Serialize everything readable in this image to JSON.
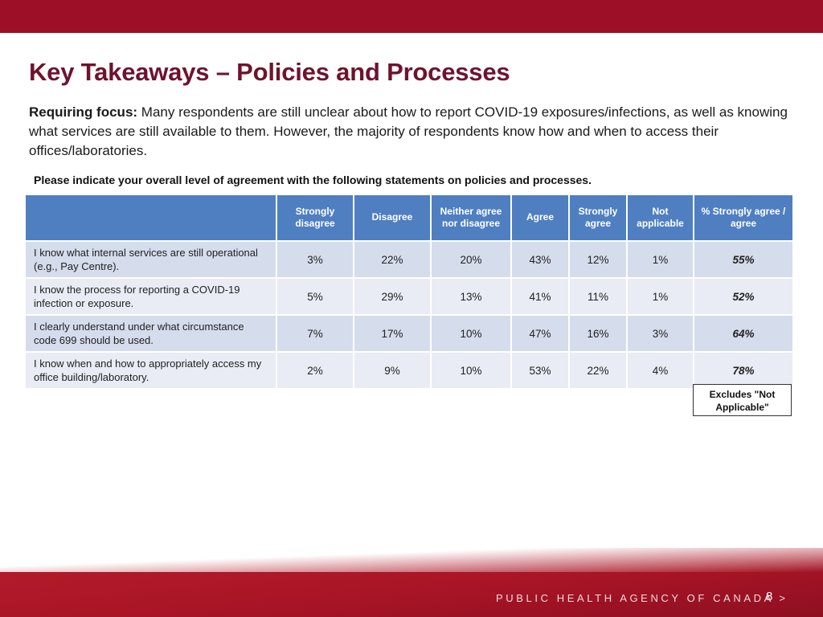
{
  "slide": {
    "title": "Key Takeaways – Policies and Processes",
    "intro_lead": "Requiring focus:",
    "intro_text": " Many respondents are still unclear about how to report COVID-19 exposures/infections, as well as knowing what services are still available to them. However, the majority of respondents know how and when to access their offices/laboratories.",
    "question": "Please indicate your overall level of agreement with the following statements on policies and processes.",
    "note": "Excludes \"Not Applicable\"",
    "footer_agency": "PUBLIC HEALTH AGENCY OF CANADA >",
    "page_number": "8"
  },
  "colors": {
    "brand_red": "#9d0f26",
    "title_color": "#6f1230",
    "header_blue": "#4f7fc1",
    "row_dark": "#d5dcec",
    "row_light": "#e9ecf5"
  },
  "table": {
    "headers": [
      "",
      "Strongly disagree",
      "Disagree",
      "Neither agree nor disagree",
      "Agree",
      "Strongly agree",
      "Not applicable",
      "% Strongly agree / agree"
    ],
    "rows": [
      {
        "statement": "I know what internal services are still operational (e.g., Pay Centre).",
        "values": [
          "3%",
          "22%",
          "20%",
          "43%",
          "12%",
          "1%"
        ],
        "summary": "55%"
      },
      {
        "statement": "I know the process for reporting a COVID-19 infection or exposure.",
        "values": [
          "5%",
          "29%",
          "13%",
          "41%",
          "11%",
          "1%"
        ],
        "summary": "52%"
      },
      {
        "statement": "I clearly understand under what circumstance code 699 should be used.",
        "values": [
          "7%",
          "17%",
          "10%",
          "47%",
          "16%",
          "3%"
        ],
        "summary": "64%"
      },
      {
        "statement": "I know when and how to appropriately access my office building/laboratory.",
        "values": [
          "2%",
          "9%",
          "10%",
          "53%",
          "22%",
          "4%"
        ],
        "summary": "78%"
      }
    ]
  }
}
